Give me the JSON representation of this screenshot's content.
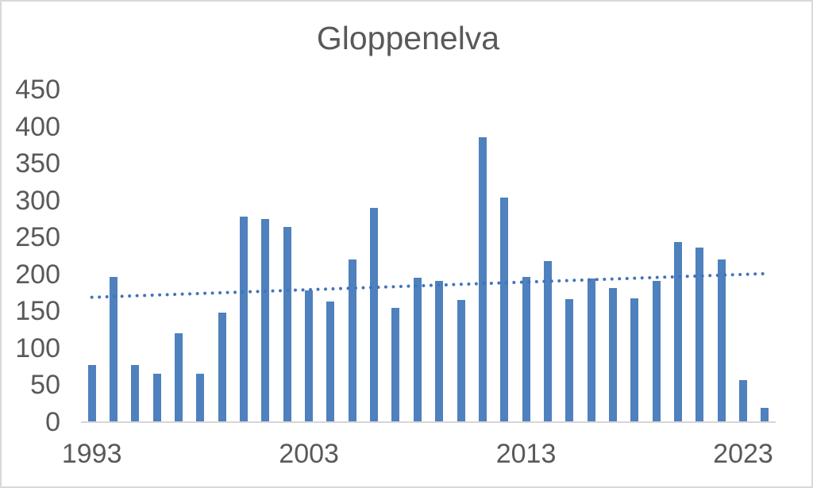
{
  "chart_data": {
    "type": "bar",
    "title": "Gloppenelva",
    "categories": [
      1993,
      1994,
      1995,
      1996,
      1997,
      1998,
      1999,
      2000,
      2001,
      2002,
      2003,
      2004,
      2005,
      2006,
      2007,
      2008,
      2009,
      2010,
      2011,
      2012,
      2013,
      2014,
      2015,
      2016,
      2017,
      2018,
      2019,
      2020,
      2021,
      2022,
      2023,
      2024
    ],
    "values": [
      77,
      197,
      77,
      65,
      120,
      66,
      148,
      278,
      275,
      264,
      178,
      163,
      220,
      290,
      155,
      195,
      191,
      165,
      386,
      304,
      197,
      218,
      167,
      194,
      181,
      168,
      191,
      244,
      236,
      220,
      57,
      19
    ],
    "xlabel": "",
    "ylabel": "",
    "ylim": [
      0,
      450
    ],
    "y_ticks": [
      0,
      50,
      100,
      150,
      200,
      250,
      300,
      350,
      400,
      450
    ],
    "x_tick_labels": [
      "1993",
      "2003",
      "2013",
      "2023"
    ],
    "x_tick_indices": [
      0,
      10,
      20,
      30
    ],
    "grid": false,
    "legend": false,
    "trendline": {
      "style": "dotted",
      "start_value": 169,
      "end_value": 201
    }
  },
  "colors": {
    "bar": "#4E81BD",
    "trendline": "#4573B9",
    "text": "#595959",
    "axis_line": "#D6D6D6",
    "border": "#D9D9D9",
    "background": "#FFFFFF"
  }
}
